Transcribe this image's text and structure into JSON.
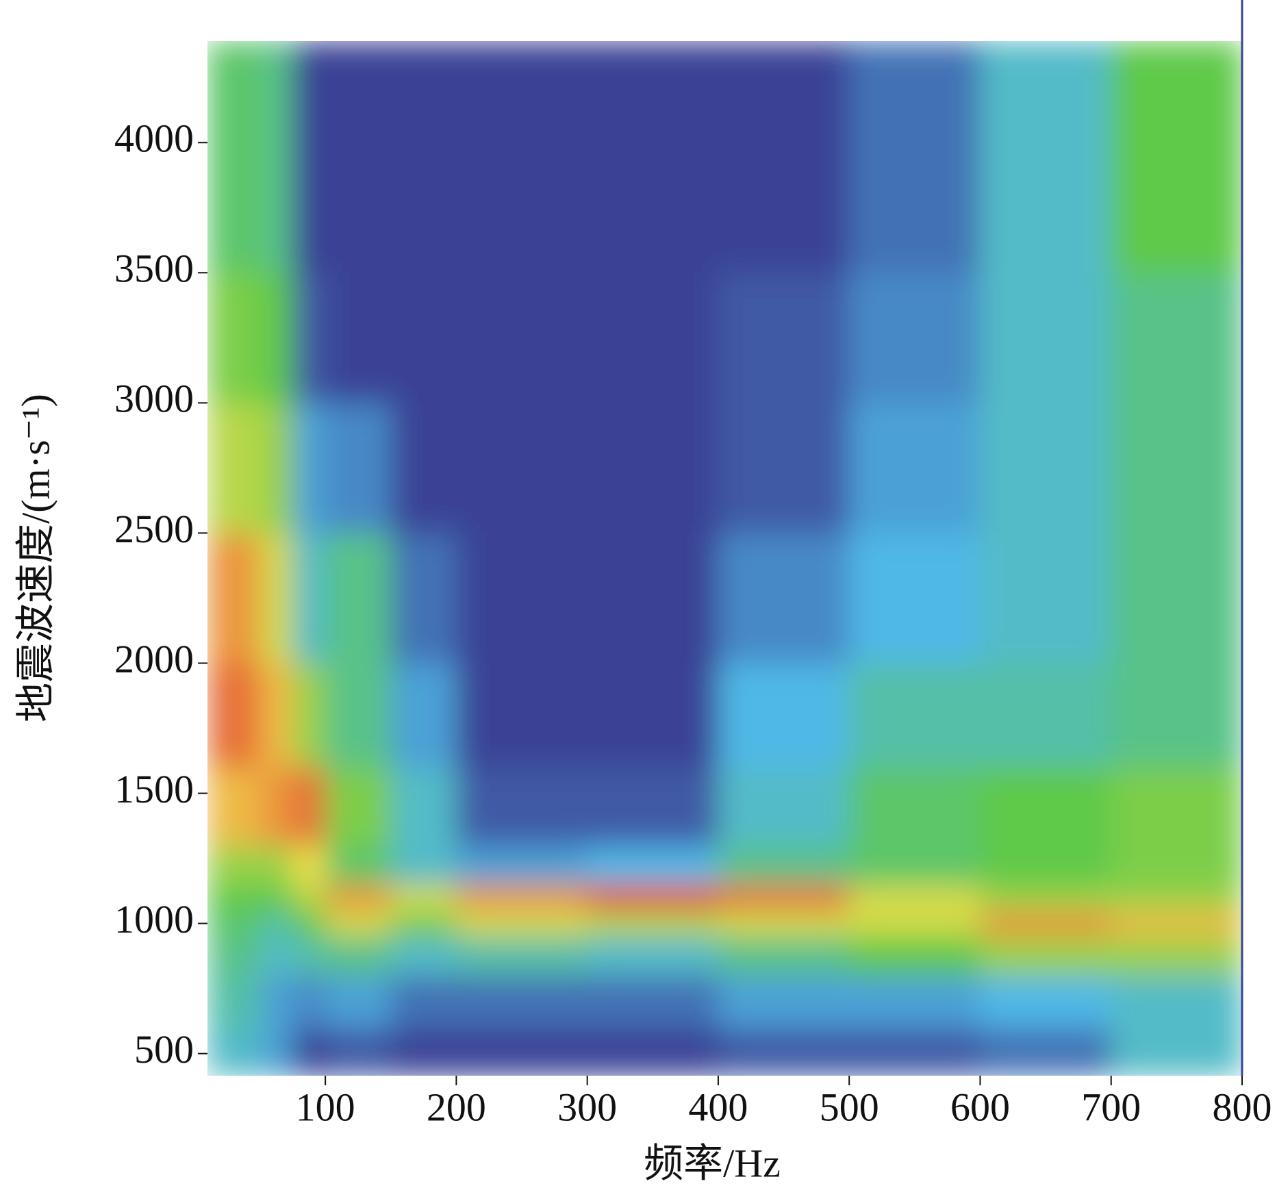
{
  "chart_data": {
    "type": "heatmap",
    "x_label": "频率/Hz",
    "y_label": "地震波速度/(m·s⁻¹)",
    "xlim": [
      10,
      800
    ],
    "ylim": [
      415,
      4390
    ],
    "xticks": [
      100,
      200,
      300,
      400,
      500,
      600,
      700,
      800
    ],
    "yticks": [
      500,
      1000,
      1500,
      2000,
      2500,
      3000,
      3500,
      4000
    ],
    "x_edges": [
      10,
      50,
      75,
      100,
      150,
      200,
      300,
      400,
      500,
      600,
      700,
      800
    ],
    "y_edges": [
      415,
      600,
      800,
      950,
      1050,
      1150,
      1300,
      1600,
      2000,
      2500,
      3000,
      3500,
      4390
    ],
    "colormap": [
      "#3b4395",
      "#4fb8e6",
      "#5ec94a",
      "#f2e04a",
      "#e0242a"
    ],
    "z": [
      [
        0.3,
        0.2,
        0,
        0.05,
        0,
        0,
        0,
        0.05,
        0.05,
        0.1,
        0.3
      ],
      [
        0.35,
        0.2,
        0.15,
        0.2,
        0.1,
        0.1,
        0.1,
        0.2,
        0.2,
        0.25,
        0.3
      ],
      [
        0.4,
        0.3,
        0.35,
        0.4,
        0.3,
        0.35,
        0.3,
        0.4,
        0.5,
        0.6,
        0.6
      ],
      [
        0.45,
        0.35,
        0.5,
        0.7,
        0.55,
        0.7,
        0.65,
        0.7,
        0.7,
        0.85,
        0.8
      ],
      [
        0.5,
        0.5,
        0.65,
        0.85,
        0.7,
        0.85,
        0.95,
        0.9,
        0.7,
        0.6,
        0.6
      ],
      [
        0.6,
        0.6,
        0.75,
        0.45,
        0.3,
        0.2,
        0.25,
        0.4,
        0.45,
        0.5,
        0.55
      ],
      [
        0.8,
        0.85,
        0.9,
        0.55,
        0.3,
        0.05,
        0.05,
        0.3,
        0.45,
        0.5,
        0.55
      ],
      [
        0.9,
        0.8,
        0.6,
        0.4,
        0.2,
        0,
        0,
        0.25,
        0.35,
        0.35,
        0.4
      ],
      [
        0.85,
        0.7,
        0.3,
        0.4,
        0.1,
        0,
        0,
        0.15,
        0.25,
        0.3,
        0.4
      ],
      [
        0.65,
        0.6,
        0.2,
        0.15,
        0,
        0,
        0,
        0.05,
        0.2,
        0.3,
        0.4
      ],
      [
        0.55,
        0.5,
        0.05,
        0,
        0,
        0,
        0,
        0.05,
        0.15,
        0.3,
        0.4
      ],
      [
        0.45,
        0.4,
        0,
        0,
        0,
        0,
        0,
        0,
        0.1,
        0.3,
        0.5
      ]
    ]
  }
}
